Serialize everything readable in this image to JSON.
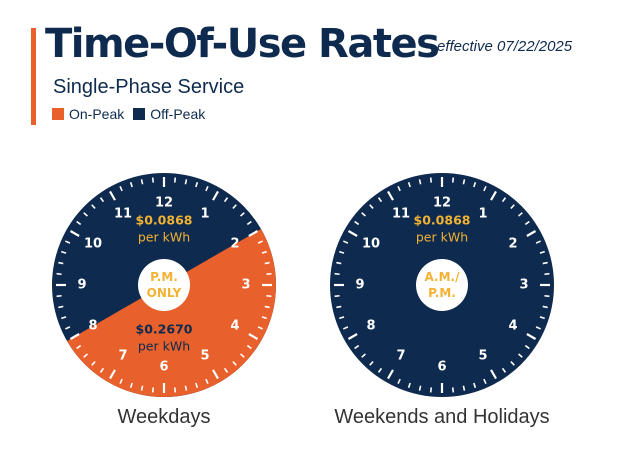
{
  "header": {
    "title": "Time-Of-Use Rates",
    "effective": "effective 07/22/2025",
    "subtitle": "Single-Phase Service"
  },
  "legend": [
    {
      "label": "On-Peak",
      "color": "#e8602c"
    },
    {
      "label": "Off-Peak",
      "color": "#0e2a4e"
    }
  ],
  "colors": {
    "on_peak": "#e8602c",
    "off_peak": "#0e2a4e",
    "rate_text": "#f2b233",
    "accent": "#e8602c"
  },
  "clock_numbers": [
    "12",
    "1",
    "2",
    "3",
    "4",
    "5",
    "6",
    "7",
    "8",
    "9",
    "10",
    "11"
  ],
  "dials": [
    {
      "caption": "Weekdays",
      "center_label": [
        "P.M.",
        "ONLY"
      ],
      "on_peak_hours": [
        2,
        8
      ],
      "off_peak_rate": {
        "price": "$0.0868",
        "unit": "per kWh"
      },
      "on_peak_rate": {
        "price": "$0.2670",
        "unit": "per kWh"
      }
    },
    {
      "caption": "Weekends and Holidays",
      "center_label": [
        "A.M./",
        "P.M."
      ],
      "on_peak_hours": null,
      "off_peak_rate": {
        "price": "$0.0868",
        "unit": "per kWh"
      },
      "on_peak_rate": null
    }
  ]
}
